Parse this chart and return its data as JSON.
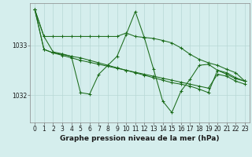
{
  "background_color": "#d5eeed",
  "grid_color": "#b8d8d5",
  "line_color": "#1a6b1a",
  "xlabel": "Graphe pression niveau de la mer (hPa)",
  "xlabel_fontsize": 6.5,
  "tick_fontsize": 5.5,
  "ytick_labels": [
    "1032",
    "1033"
  ],
  "ytick_values": [
    1032.0,
    1033.0
  ],
  "ylim": [
    1031.45,
    1033.85
  ],
  "xlim": [
    -0.5,
    23.5
  ],
  "s1": [
    1033.72,
    1033.18,
    1032.87,
    1032.83,
    1032.78,
    1032.05,
    1032.02,
    1032.42,
    1032.6,
    1032.78,
    1033.22,
    1033.68,
    1033.15,
    1032.52,
    1031.88,
    1031.65,
    1032.08,
    1032.32,
    1032.6,
    1032.62,
    1032.5,
    1032.42,
    1032.33,
    1032.28
  ],
  "s2": [
    1033.72,
    1033.18,
    1033.18,
    1033.18,
    1033.18,
    1033.18,
    1033.18,
    1033.18,
    1033.18,
    1033.18,
    1033.25,
    1033.18,
    1033.16,
    1033.14,
    1033.1,
    1033.05,
    1032.95,
    1032.82,
    1032.72,
    1032.65,
    1032.6,
    1032.52,
    1032.45,
    1032.28
  ],
  "s3": [
    1033.72,
    1032.92,
    1032.85,
    1032.82,
    1032.78,
    1032.75,
    1032.7,
    1032.65,
    1032.6,
    1032.55,
    1032.5,
    1032.45,
    1032.4,
    1032.35,
    1032.3,
    1032.25,
    1032.22,
    1032.18,
    1032.12,
    1032.05,
    1032.5,
    1032.45,
    1032.35,
    1032.28
  ],
  "s4": [
    1033.72,
    1032.92,
    1032.85,
    1032.8,
    1032.75,
    1032.7,
    1032.66,
    1032.62,
    1032.58,
    1032.54,
    1032.5,
    1032.46,
    1032.42,
    1032.38,
    1032.34,
    1032.3,
    1032.26,
    1032.22,
    1032.18,
    1032.14,
    1032.42,
    1032.38,
    1032.28,
    1032.22
  ]
}
